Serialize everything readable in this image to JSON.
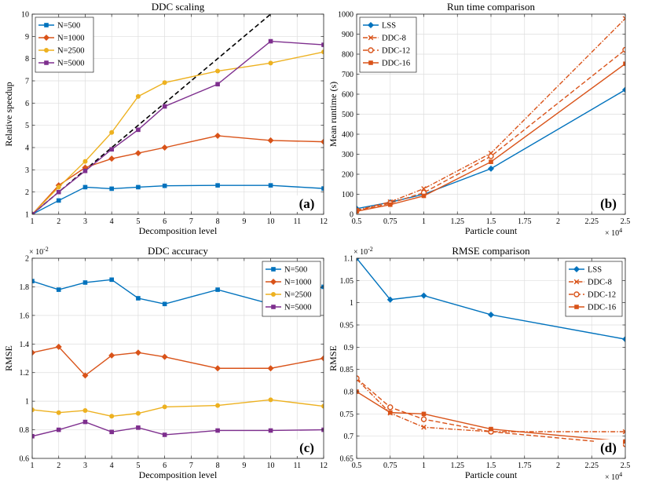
{
  "chart_data": [
    {
      "type": "line",
      "title": "DDC scaling",
      "xlabel": "Decomposition level",
      "ylabel": "Relative speedup",
      "panel_label": "(a)",
      "xlim": [
        1,
        12
      ],
      "ylim": [
        1,
        10
      ],
      "xticks": [
        1,
        2,
        3,
        4,
        5,
        6,
        7,
        8,
        9,
        10,
        11,
        12
      ],
      "xtick_labels": [
        "1",
        "2",
        "3",
        "4",
        "5",
        "6",
        "7",
        "8",
        "9",
        "10",
        "11",
        "12"
      ],
      "yticks": [
        1,
        2,
        3,
        4,
        5,
        6,
        7,
        8,
        9,
        10
      ],
      "ytick_labels": [
        "1",
        "2",
        "3",
        "4",
        "5",
        "6",
        "7",
        "8",
        "9",
        "10"
      ],
      "legend": "top-left",
      "grid": true,
      "x": [
        1,
        2,
        3,
        4,
        5,
        6,
        8,
        10,
        12
      ],
      "series": [
        {
          "name": "N=500",
          "color": "#0072BD",
          "marker": "square",
          "dash": "solid",
          "values": [
            1,
            1.62,
            2.22,
            2.15,
            2.22,
            2.28,
            2.3,
            2.3,
            2.16
          ]
        },
        {
          "name": "N=1000",
          "color": "#D95319",
          "marker": "diamond",
          "dash": "solid",
          "values": [
            1,
            2.3,
            3.1,
            3.5,
            3.75,
            4.0,
            4.53,
            4.32,
            4.26
          ]
        },
        {
          "name": "N=2500",
          "color": "#EDB120",
          "marker": "circle",
          "dash": "solid",
          "values": [
            1,
            2.22,
            3.38,
            4.68,
            6.3,
            6.92,
            7.44,
            7.8,
            8.3
          ]
        },
        {
          "name": "N=5000",
          "color": "#7E2F8E",
          "marker": "square",
          "dash": "solid",
          "values": [
            1,
            2.0,
            2.95,
            3.92,
            4.8,
            5.85,
            6.85,
            8.78,
            8.62
          ]
        }
      ],
      "reference_line": {
        "x": [
          1,
          10
        ],
        "y": [
          1,
          10
        ],
        "color": "#000000",
        "dash": "dashed"
      }
    },
    {
      "type": "line",
      "title": "Run time comparison",
      "xlabel": "Particle count",
      "ylabel": "Mean runtime (s)",
      "panel_label": "(b)",
      "exponent_label": "× 10",
      "exponent_power": "4",
      "xlim": [
        0.5,
        2.5
      ],
      "ylim": [
        0,
        1000
      ],
      "xticks": [
        0.5,
        0.75,
        1,
        1.25,
        1.5,
        1.75,
        2,
        2.25,
        2.5
      ],
      "xtick_labels": [
        "0.5",
        "0.75",
        "1",
        "1.25",
        "1.5",
        "1.75",
        "2",
        "2.25",
        "2.5"
      ],
      "yticks": [
        0,
        100,
        200,
        300,
        400,
        500,
        600,
        700,
        800,
        900,
        1000
      ],
      "ytick_labels": [
        "0",
        "100",
        "200",
        "300",
        "400",
        "500",
        "600",
        "700",
        "800",
        "900",
        "1000"
      ],
      "legend": "top-left",
      "grid": true,
      "x": [
        0.5,
        0.75,
        1,
        1.5,
        2.5
      ],
      "series": [
        {
          "name": "LSS",
          "color": "#0072BD",
          "marker": "diamond",
          "dash": "solid",
          "values": [
            28,
            60,
            100,
            228,
            622
          ]
        },
        {
          "name": "DDC-8",
          "color": "#D95319",
          "marker": "x",
          "dash": "dashdot",
          "values": [
            20,
            62,
            128,
            305,
            978
          ]
        },
        {
          "name": "DDC-12",
          "color": "#D95319",
          "marker": "circle-open",
          "dash": "dashed",
          "values": [
            18,
            55,
            108,
            290,
            822
          ]
        },
        {
          "name": "DDC-16",
          "color": "#D95319",
          "marker": "square",
          "dash": "solid",
          "values": [
            15,
            48,
            92,
            262,
            752
          ]
        }
      ]
    },
    {
      "type": "line",
      "title": "DDC accuracy",
      "xlabel": "Decomposition level",
      "ylabel": "RMSE",
      "panel_label": "(c)",
      "exponent_label": "× 10",
      "exponent_power": "-2",
      "xlim": [
        1,
        12
      ],
      "ylim": [
        0.6,
        2.0
      ],
      "xticks": [
        1,
        2,
        3,
        4,
        5,
        6,
        7,
        8,
        9,
        10,
        11,
        12
      ],
      "xtick_labels": [
        "1",
        "2",
        "3",
        "4",
        "5",
        "6",
        "7",
        "8",
        "9",
        "10",
        "11",
        "12"
      ],
      "yticks": [
        0.6,
        0.8,
        1.0,
        1.2,
        1.4,
        1.6,
        1.8,
        2.0
      ],
      "ytick_labels": [
        "0.6",
        "0.8",
        "1",
        "1.2",
        "1.4",
        "1.6",
        "1.8",
        "2"
      ],
      "legend": "top-right",
      "grid": true,
      "x": [
        1,
        2,
        3,
        4,
        5,
        6,
        8,
        10,
        12
      ],
      "series": [
        {
          "name": "N=500",
          "color": "#0072BD",
          "marker": "square",
          "dash": "solid",
          "values": [
            1.84,
            1.78,
            1.83,
            1.85,
            1.72,
            1.68,
            1.78,
            1.68,
            1.8
          ]
        },
        {
          "name": "N=1000",
          "color": "#D95319",
          "marker": "diamond",
          "dash": "solid",
          "values": [
            1.34,
            1.38,
            1.18,
            1.32,
            1.34,
            1.31,
            1.23,
            1.23,
            1.3
          ]
        },
        {
          "name": "N=2500",
          "color": "#EDB120",
          "marker": "circle",
          "dash": "solid",
          "values": [
            0.94,
            0.92,
            0.935,
            0.895,
            0.915,
            0.96,
            0.97,
            1.01,
            0.965
          ]
        },
        {
          "name": "N=5000",
          "color": "#7E2F8E",
          "marker": "square",
          "dash": "solid",
          "values": [
            0.755,
            0.8,
            0.855,
            0.785,
            0.815,
            0.765,
            0.795,
            0.795,
            0.8
          ]
        }
      ]
    },
    {
      "type": "line",
      "title": "RMSE comparison",
      "xlabel": "Particle count",
      "ylabel": "RMSE",
      "panel_label": "(d)",
      "exponent_label": "× 10",
      "exponent_power": "4",
      "y_exponent_label": "× 10",
      "y_exponent_power": "-2",
      "xlim": [
        0.5,
        2.5
      ],
      "ylim": [
        0.65,
        1.1
      ],
      "xticks": [
        0.5,
        0.75,
        1,
        1.25,
        1.5,
        1.75,
        2,
        2.25,
        2.5
      ],
      "xtick_labels": [
        "0.5",
        "0.75",
        "1",
        "1.25",
        "1.5",
        "1.75",
        "2",
        "2.25",
        "2.5"
      ],
      "yticks": [
        0.65,
        0.7,
        0.75,
        0.8,
        0.85,
        0.9,
        0.95,
        1.0,
        1.05,
        1.1
      ],
      "ytick_labels": [
        "0.65",
        "0.7",
        "0.75",
        "0.8",
        "0.85",
        "0.9",
        "0.95",
        "1",
        "1.05",
        "1.1"
      ],
      "legend": "top-right",
      "grid": true,
      "x": [
        0.5,
        0.75,
        1,
        1.5,
        2.5
      ],
      "series": [
        {
          "name": "LSS",
          "color": "#0072BD",
          "marker": "diamond",
          "dash": "solid",
          "values": [
            1.1,
            1.007,
            1.016,
            0.973,
            0.918
          ]
        },
        {
          "name": "DDC-8",
          "color": "#D95319",
          "marker": "x",
          "dash": "dashdot",
          "values": [
            0.828,
            0.752,
            0.72,
            0.71,
            0.71
          ]
        },
        {
          "name": "DDC-12",
          "color": "#D95319",
          "marker": "circle-open",
          "dash": "dashed",
          "values": [
            0.83,
            0.765,
            0.738,
            0.71,
            0.682
          ]
        },
        {
          "name": "DDC-16",
          "color": "#D95319",
          "marker": "square",
          "dash": "solid",
          "values": [
            0.8,
            0.753,
            0.75,
            0.716,
            0.688
          ]
        }
      ]
    }
  ]
}
